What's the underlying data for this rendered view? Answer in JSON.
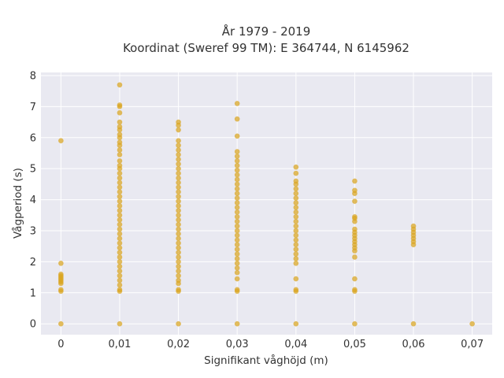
{
  "chart_data": {
    "type": "scatter",
    "title_line1": "År 1979 - 2019",
    "title_line2": "Koordinat (Sweref 99 TM): E 364744, N 6145962",
    "xlabel": "Signifikant våghöjd (m)",
    "ylabel": "Vågperiod (s)",
    "x_ticks": [
      0,
      0.01,
      0.02,
      0.03,
      0.04,
      0.05,
      0.06,
      0.07
    ],
    "x_tick_labels": [
      "0",
      "0,01",
      "0,02",
      "0,03",
      "0,04",
      "0,05",
      "0,06",
      "0,07"
    ],
    "y_ticks": [
      0,
      1,
      2,
      3,
      4,
      5,
      6,
      7,
      8
    ],
    "y_tick_labels": [
      "0",
      "1",
      "2",
      "3",
      "4",
      "5",
      "6",
      "7",
      "8"
    ],
    "xlim": [
      -0.0034,
      0.0734
    ],
    "ylim": [
      -0.35,
      8.1
    ],
    "grid": true,
    "marker_color": "#DAA520",
    "background_color": "#E9E9F1",
    "series": [
      {
        "points": [
          [
            0,
            0
          ],
          [
            0,
            1.05
          ],
          [
            0,
            1.1
          ],
          [
            0,
            1.3
          ],
          [
            0,
            1.35
          ],
          [
            0,
            1.4
          ],
          [
            0,
            1.45
          ],
          [
            0,
            1.5
          ],
          [
            0,
            1.55
          ],
          [
            0,
            1.6
          ],
          [
            0,
            1.95
          ],
          [
            0,
            5.9
          ],
          [
            0.01,
            0
          ],
          [
            0.01,
            1.05
          ],
          [
            0.01,
            1.1
          ],
          [
            0.01,
            1.25
          ],
          [
            0.01,
            1.4
          ],
          [
            0.01,
            1.55
          ],
          [
            0.01,
            1.7
          ],
          [
            0.01,
            1.85
          ],
          [
            0.01,
            2.0
          ],
          [
            0.01,
            2.15
          ],
          [
            0.01,
            2.3
          ],
          [
            0.01,
            2.45
          ],
          [
            0.01,
            2.6
          ],
          [
            0.01,
            2.75
          ],
          [
            0.01,
            2.9
          ],
          [
            0.01,
            3.05
          ],
          [
            0.01,
            3.2
          ],
          [
            0.01,
            3.35
          ],
          [
            0.01,
            3.5
          ],
          [
            0.01,
            3.65
          ],
          [
            0.01,
            3.8
          ],
          [
            0.01,
            3.95
          ],
          [
            0.01,
            4.1
          ],
          [
            0.01,
            4.25
          ],
          [
            0.01,
            4.4
          ],
          [
            0.01,
            4.55
          ],
          [
            0.01,
            4.7
          ],
          [
            0.01,
            4.85
          ],
          [
            0.01,
            5.0
          ],
          [
            0.01,
            5.1
          ],
          [
            0.01,
            5.25
          ],
          [
            0.01,
            5.45
          ],
          [
            0.01,
            5.6
          ],
          [
            0.01,
            5.75
          ],
          [
            0.01,
            5.85
          ],
          [
            0.01,
            6.0
          ],
          [
            0.01,
            6.1
          ],
          [
            0.01,
            6.25
          ],
          [
            0.01,
            6.35
          ],
          [
            0.01,
            6.5
          ],
          [
            0.01,
            6.8
          ],
          [
            0.01,
            7.0
          ],
          [
            0.01,
            7.05
          ],
          [
            0.01,
            7.7
          ],
          [
            0.02,
            0
          ],
          [
            0.02,
            1.05
          ],
          [
            0.02,
            1.1
          ],
          [
            0.02,
            1.3
          ],
          [
            0.02,
            1.4
          ],
          [
            0.02,
            1.55
          ],
          [
            0.02,
            1.7
          ],
          [
            0.02,
            1.85
          ],
          [
            0.02,
            2.0
          ],
          [
            0.02,
            2.15
          ],
          [
            0.02,
            2.3
          ],
          [
            0.02,
            2.45
          ],
          [
            0.02,
            2.6
          ],
          [
            0.02,
            2.75
          ],
          [
            0.02,
            2.9
          ],
          [
            0.02,
            3.05
          ],
          [
            0.02,
            3.2
          ],
          [
            0.02,
            3.35
          ],
          [
            0.02,
            3.5
          ],
          [
            0.02,
            3.65
          ],
          [
            0.02,
            3.8
          ],
          [
            0.02,
            3.95
          ],
          [
            0.02,
            4.1
          ],
          [
            0.02,
            4.25
          ],
          [
            0.02,
            4.4
          ],
          [
            0.02,
            4.55
          ],
          [
            0.02,
            4.7
          ],
          [
            0.02,
            4.85
          ],
          [
            0.02,
            5.0
          ],
          [
            0.02,
            5.15
          ],
          [
            0.02,
            5.3
          ],
          [
            0.02,
            5.45
          ],
          [
            0.02,
            5.6
          ],
          [
            0.02,
            5.75
          ],
          [
            0.02,
            5.9
          ],
          [
            0.02,
            6.25
          ],
          [
            0.02,
            6.4
          ],
          [
            0.02,
            6.5
          ],
          [
            0.03,
            0
          ],
          [
            0.03,
            1.05
          ],
          [
            0.03,
            1.1
          ],
          [
            0.03,
            1.45
          ],
          [
            0.03,
            1.65
          ],
          [
            0.03,
            1.8
          ],
          [
            0.03,
            1.95
          ],
          [
            0.03,
            2.1
          ],
          [
            0.03,
            2.25
          ],
          [
            0.03,
            2.4
          ],
          [
            0.03,
            2.55
          ],
          [
            0.03,
            2.7
          ],
          [
            0.03,
            2.85
          ],
          [
            0.03,
            3.0
          ],
          [
            0.03,
            3.15
          ],
          [
            0.03,
            3.3
          ],
          [
            0.03,
            3.45
          ],
          [
            0.03,
            3.6
          ],
          [
            0.03,
            3.75
          ],
          [
            0.03,
            3.9
          ],
          [
            0.03,
            4.05
          ],
          [
            0.03,
            4.2
          ],
          [
            0.03,
            4.35
          ],
          [
            0.03,
            4.5
          ],
          [
            0.03,
            4.65
          ],
          [
            0.03,
            4.8
          ],
          [
            0.03,
            4.95
          ],
          [
            0.03,
            5.1
          ],
          [
            0.03,
            5.25
          ],
          [
            0.03,
            5.4
          ],
          [
            0.03,
            5.55
          ],
          [
            0.03,
            6.05
          ],
          [
            0.03,
            6.6
          ],
          [
            0.03,
            7.1
          ],
          [
            0.04,
            0
          ],
          [
            0.04,
            1.05
          ],
          [
            0.04,
            1.1
          ],
          [
            0.04,
            1.45
          ],
          [
            0.04,
            1.95
          ],
          [
            0.04,
            2.1
          ],
          [
            0.04,
            2.25
          ],
          [
            0.04,
            2.4
          ],
          [
            0.04,
            2.55
          ],
          [
            0.04,
            2.7
          ],
          [
            0.04,
            2.85
          ],
          [
            0.04,
            3.0
          ],
          [
            0.04,
            3.15
          ],
          [
            0.04,
            3.3
          ],
          [
            0.04,
            3.45
          ],
          [
            0.04,
            3.6
          ],
          [
            0.04,
            3.75
          ],
          [
            0.04,
            3.9
          ],
          [
            0.04,
            4.05
          ],
          [
            0.04,
            4.2
          ],
          [
            0.04,
            4.35
          ],
          [
            0.04,
            4.5
          ],
          [
            0.04,
            4.6
          ],
          [
            0.04,
            4.85
          ],
          [
            0.04,
            5.05
          ],
          [
            0.05,
            0
          ],
          [
            0.05,
            1.05
          ],
          [
            0.05,
            1.1
          ],
          [
            0.05,
            1.45
          ],
          [
            0.05,
            2.15
          ],
          [
            0.05,
            2.35
          ],
          [
            0.05,
            2.45
          ],
          [
            0.05,
            2.55
          ],
          [
            0.05,
            2.65
          ],
          [
            0.05,
            2.75
          ],
          [
            0.05,
            2.85
          ],
          [
            0.05,
            2.95
          ],
          [
            0.05,
            3.05
          ],
          [
            0.05,
            3.3
          ],
          [
            0.05,
            3.4
          ],
          [
            0.05,
            3.45
          ],
          [
            0.05,
            3.95
          ],
          [
            0.05,
            4.2
          ],
          [
            0.05,
            4.3
          ],
          [
            0.05,
            4.6
          ],
          [
            0.06,
            0
          ],
          [
            0.06,
            2.55
          ],
          [
            0.06,
            2.65
          ],
          [
            0.06,
            2.75
          ],
          [
            0.06,
            2.85
          ],
          [
            0.06,
            2.95
          ],
          [
            0.06,
            3.05
          ],
          [
            0.06,
            3.15
          ],
          [
            0.07,
            0
          ]
        ]
      }
    ]
  }
}
